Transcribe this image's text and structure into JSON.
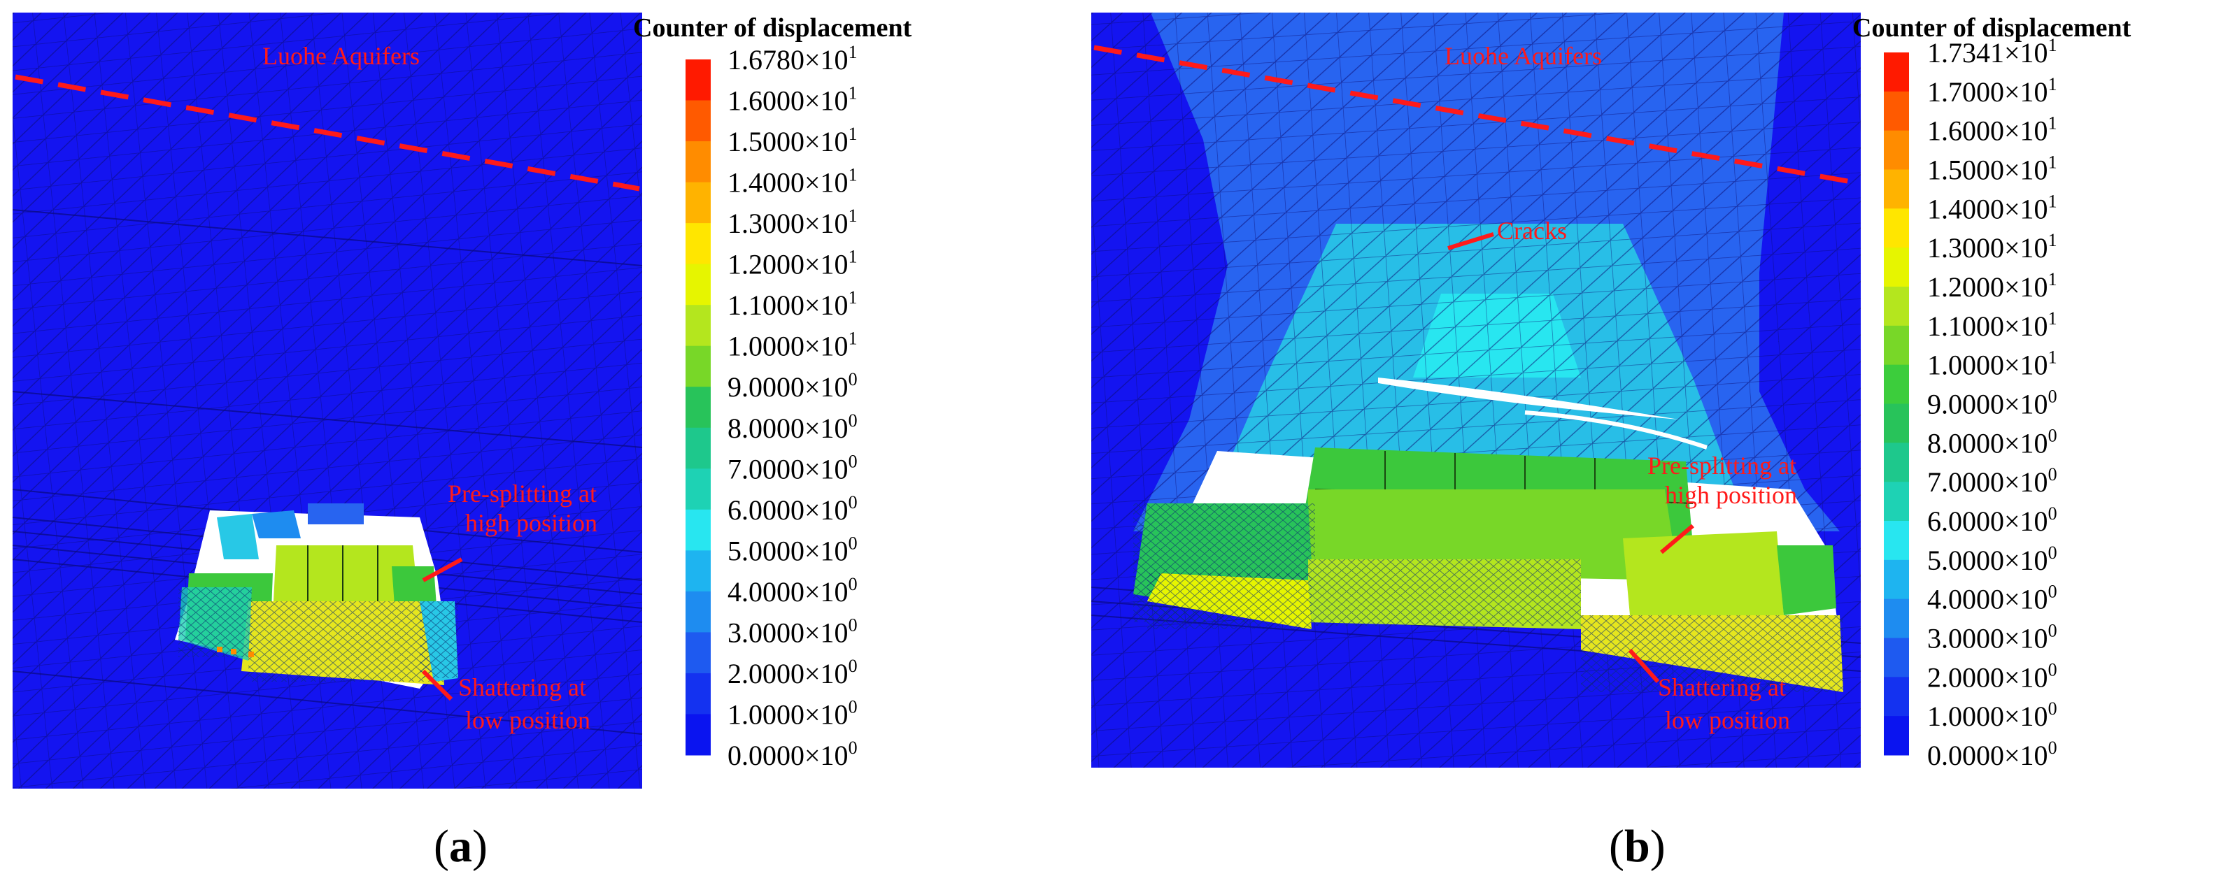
{
  "panels": [
    {
      "id": "a",
      "caption_letter": "a",
      "legend_title": "Counter of displacement",
      "legend_ticks": [
        {
          "mantissa": "1.6780",
          "exp": "1"
        },
        {
          "mantissa": "1.6000",
          "exp": "1"
        },
        {
          "mantissa": "1.5000",
          "exp": "1"
        },
        {
          "mantissa": "1.4000",
          "exp": "1"
        },
        {
          "mantissa": "1.3000",
          "exp": "1"
        },
        {
          "mantissa": "1.2000",
          "exp": "1"
        },
        {
          "mantissa": "1.1000",
          "exp": "1"
        },
        {
          "mantissa": "1.0000",
          "exp": "1"
        },
        {
          "mantissa": "9.0000",
          "exp": "0"
        },
        {
          "mantissa": "8.0000",
          "exp": "0"
        },
        {
          "mantissa": "7.0000",
          "exp": "0"
        },
        {
          "mantissa": "6.0000",
          "exp": "0"
        },
        {
          "mantissa": "5.0000",
          "exp": "0"
        },
        {
          "mantissa": "4.0000",
          "exp": "0"
        },
        {
          "mantissa": "3.0000",
          "exp": "0"
        },
        {
          "mantissa": "2.0000",
          "exp": "0"
        },
        {
          "mantissa": "1.0000",
          "exp": "0"
        },
        {
          "mantissa": "0.0000",
          "exp": "0"
        }
      ],
      "annotations": {
        "aquifer": "Luohe Aquifers",
        "presplit_line1": "Pre-splitting at",
        "presplit_line2": "high position",
        "shatter_line1": "Shattering at",
        "shatter_line2": "low position"
      }
    },
    {
      "id": "b",
      "caption_letter": "b",
      "legend_title": "Counter of displacement",
      "legend_ticks": [
        {
          "mantissa": "1.7341",
          "exp": "1"
        },
        {
          "mantissa": "1.7000",
          "exp": "1"
        },
        {
          "mantissa": "1.6000",
          "exp": "1"
        },
        {
          "mantissa": "1.5000",
          "exp": "1"
        },
        {
          "mantissa": "1.4000",
          "exp": "1"
        },
        {
          "mantissa": "1.3000",
          "exp": "1"
        },
        {
          "mantissa": "1.2000",
          "exp": "1"
        },
        {
          "mantissa": "1.1000",
          "exp": "1"
        },
        {
          "mantissa": "1.0000",
          "exp": "1"
        },
        {
          "mantissa": "9.0000",
          "exp": "0"
        },
        {
          "mantissa": "8.0000",
          "exp": "0"
        },
        {
          "mantissa": "7.0000",
          "exp": "0"
        },
        {
          "mantissa": "6.0000",
          "exp": "0"
        },
        {
          "mantissa": "5.0000",
          "exp": "0"
        },
        {
          "mantissa": "4.0000",
          "exp": "0"
        },
        {
          "mantissa": "3.0000",
          "exp": "0"
        },
        {
          "mantissa": "2.0000",
          "exp": "0"
        },
        {
          "mantissa": "1.0000",
          "exp": "0"
        },
        {
          "mantissa": "0.0000",
          "exp": "0"
        }
      ],
      "annotations": {
        "aquifer": "Luohe Aquifers",
        "cracks": "Cracks",
        "presplit_line1": "Pre-splitting at",
        "presplit_line2": "high position",
        "shatter_line1": "Shattering at",
        "shatter_line2": "low position"
      }
    }
  ],
  "legend_colors": [
    "#ff1a00",
    "#ff5a00",
    "#ff8c00",
    "#ffb300",
    "#ffe600",
    "#e6f500",
    "#b4e61e",
    "#78d728",
    "#3ccd3c",
    "#28c35a",
    "#1ec88c",
    "#1ed2b4",
    "#28e6f0",
    "#1eb4f0",
    "#1e8cf0",
    "#1e5af0",
    "#1432f0",
    "#0a14f0"
  ],
  "model_colors": {
    "background": "#1414f0",
    "uplift": "#2864f0",
    "mid": "#28c8e6",
    "high": "#3cc83c",
    "top": "#e6e61e"
  }
}
